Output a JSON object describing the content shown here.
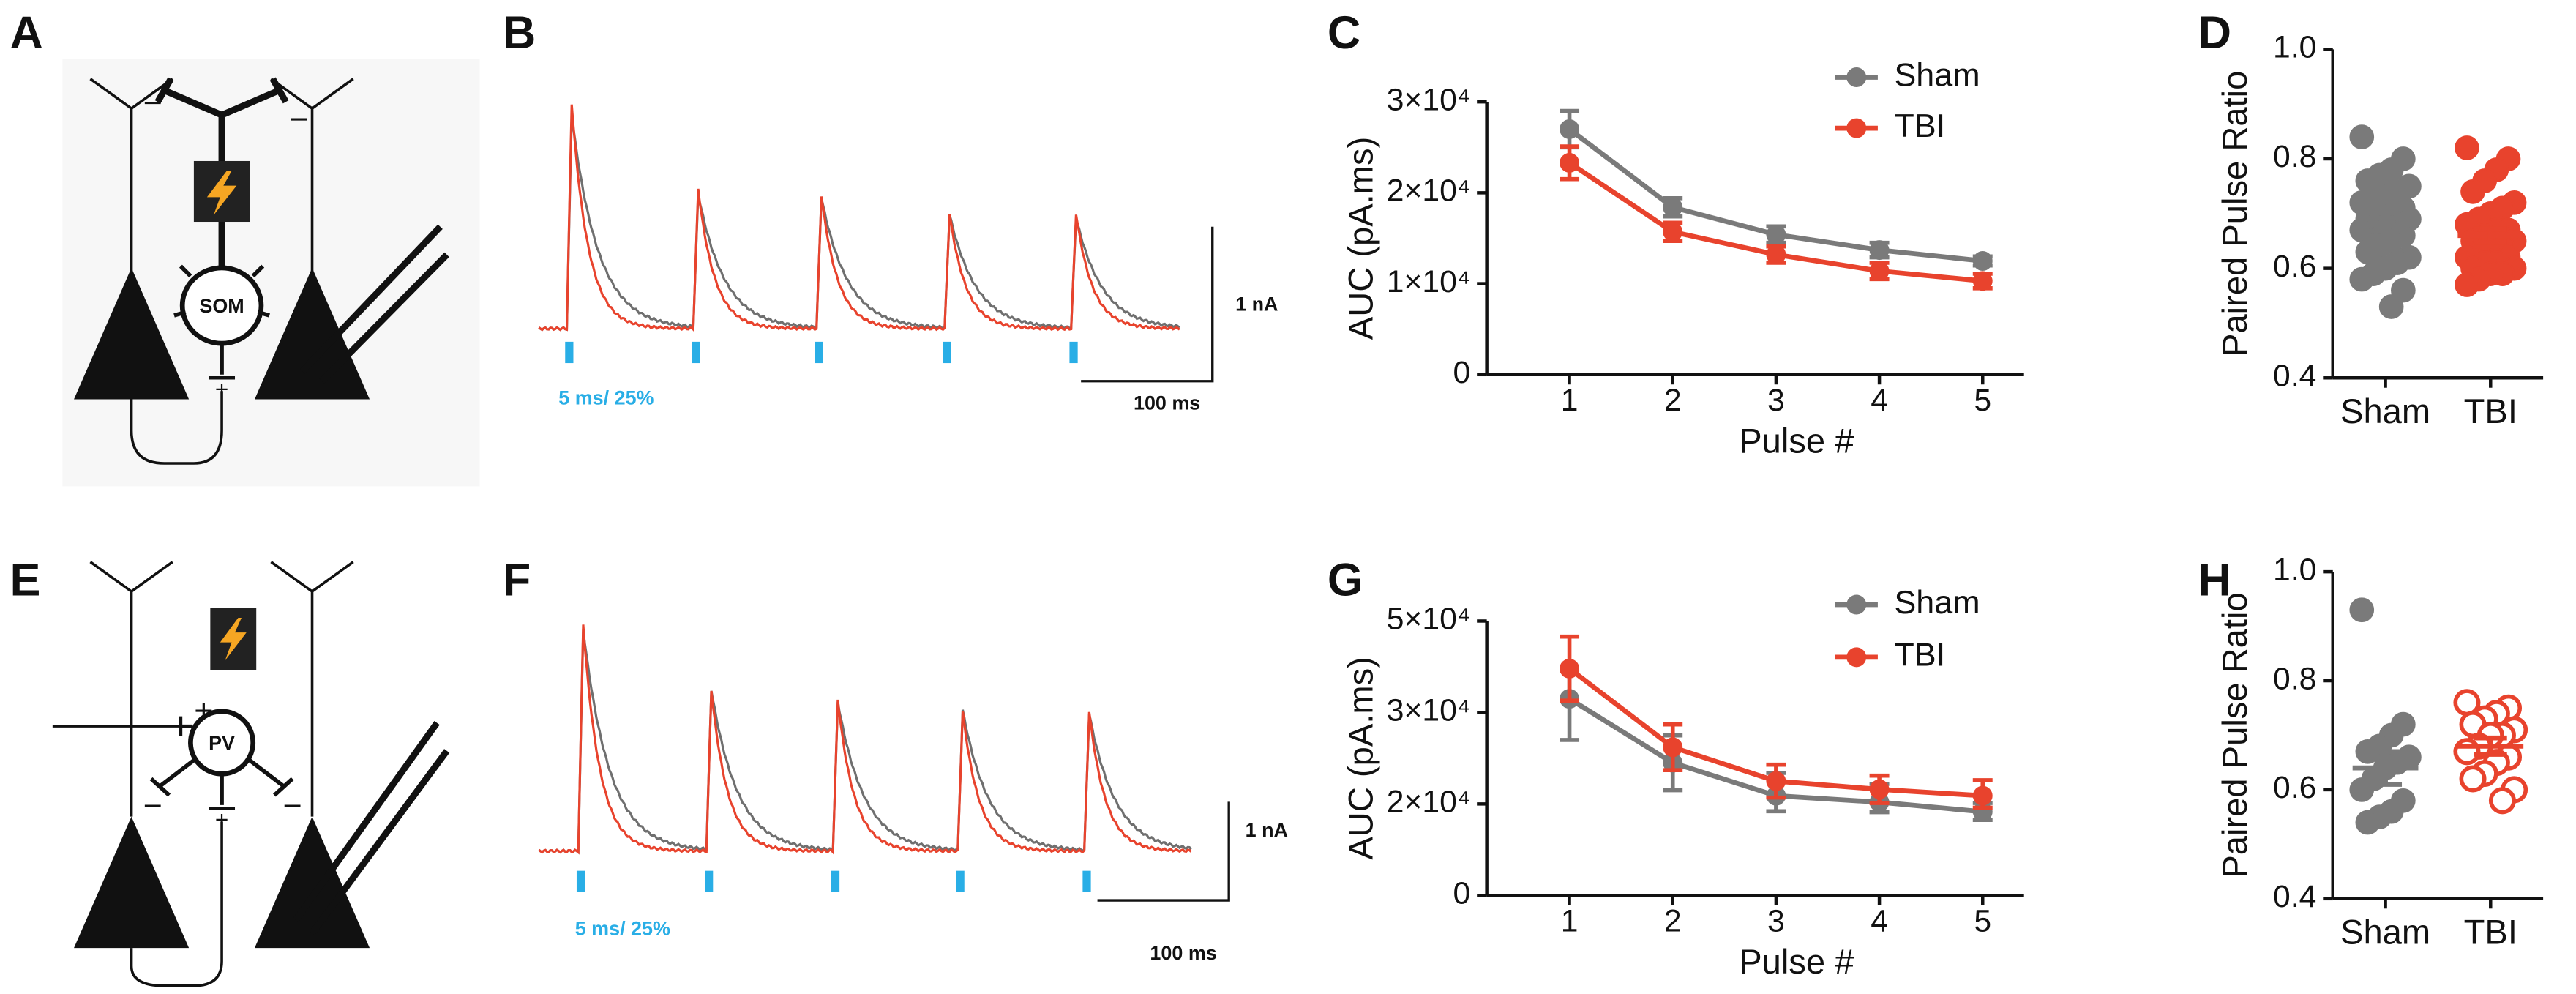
{
  "panel_labels": [
    "A",
    "B",
    "C",
    "D",
    "E",
    "F",
    "G",
    "H"
  ],
  "diagram_a": {
    "cell": "SOM",
    "signs": [
      "−",
      "−",
      "+"
    ]
  },
  "diagram_e": {
    "cell": "PV",
    "signs": [
      "+",
      "−",
      "−",
      "+"
    ]
  },
  "traces": [
    {
      "stim": "5 ms/ 25%",
      "y_scale": "1 nA",
      "x_scale": "100 ms"
    },
    {
      "stim": "5 ms/ 25%",
      "y_scale": "1 nA",
      "x_scale": "100 ms"
    }
  ],
  "chart_data": [
    {
      "type": "line",
      "x_label": "Pulse #",
      "y_label": "AUC (pA.ms)",
      "x": [
        1,
        2,
        3,
        4,
        5
      ],
      "xlim": [
        0.2,
        5.4
      ],
      "xticks": [
        1,
        2,
        3,
        4,
        5
      ],
      "ylim": [
        0,
        30000
      ],
      "yticks": [
        0,
        {
          "value": 10000,
          "label": "1×10⁴"
        },
        {
          "value": 20000,
          "label": "2×10⁴"
        },
        {
          "value": 30000,
          "label": "3×10⁴"
        }
      ],
      "legend": "upper right",
      "series": [
        {
          "name": "Sham",
          "color": "#7a7a7a",
          "values": [
            27000,
            18400,
            15400,
            13700,
            12500
          ],
          "errors": [
            2000,
            1000,
            900,
            800,
            500
          ]
        },
        {
          "name": "TBI",
          "color": "#e8432d",
          "values": [
            23300,
            15700,
            13200,
            11400,
            10300
          ],
          "errors": [
            1800,
            1000,
            900,
            900,
            800
          ]
        }
      ]
    },
    {
      "type": "strip",
      "y_label": "Paired Pulse Ratio",
      "categories": [
        "Sham",
        "TBI"
      ],
      "ylim": [
        0.4,
        1
      ],
      "yticks": [
        0.4,
        0.6,
        0.8,
        {
          "value": 1,
          "label": "1.0"
        }
      ],
      "series": [
        {
          "color": "#7a7a7a",
          "mean": 0.68,
          "sem": 0.012,
          "values": [
            0.84,
            0.8,
            0.78,
            0.77,
            0.76,
            0.75,
            0.74,
            0.73,
            0.72,
            0.72,
            0.71,
            0.7,
            0.7,
            0.69,
            0.69,
            0.68,
            0.68,
            0.67,
            0.67,
            0.66,
            0.65,
            0.64,
            0.63,
            0.62,
            0.61,
            0.6,
            0.59,
            0.58,
            0.56,
            0.53
          ]
        },
        {
          "color": "#e8432d",
          "mean": 0.66,
          "sem": 0.012,
          "values": [
            0.82,
            0.8,
            0.78,
            0.76,
            0.74,
            0.72,
            0.71,
            0.7,
            0.69,
            0.68,
            0.67,
            0.67,
            0.66,
            0.65,
            0.65,
            0.64,
            0.63,
            0.63,
            0.62,
            0.62,
            0.61,
            0.61,
            0.6,
            0.6,
            0.59,
            0.59,
            0.58,
            0.57
          ]
        }
      ]
    },
    {
      "type": "line",
      "x_label": "Pulse #",
      "y_label": "AUC (pA.ms)",
      "x": [
        1,
        2,
        3,
        4,
        5
      ],
      "xlim": [
        0.2,
        5.4
      ],
      "xticks": [
        1,
        2,
        3,
        4,
        5
      ],
      "ylim": [
        0,
        50000
      ],
      "yticks": [
        0,
        {
          "value": 20000,
          "label": "2×10⁴"
        },
        {
          "value": 30000,
          "label": "3×10⁴"
        },
        {
          "value": 50000,
          "label": "5×10⁴"
        }
      ],
      "legend": "upper right",
      "series": [
        {
          "name": "Sham",
          "color": "#7a7a7a",
          "values": [
            33000,
            24500,
            20900,
            20200,
            18300
          ],
          "errors": [
            6000,
            3000,
            2500,
            2000,
            1800
          ]
        },
        {
          "name": "TBI",
          "color": "#e8432d",
          "values": [
            39600,
            26200,
            22500,
            21600,
            20900
          ],
          "errors": [
            7000,
            2500,
            1800,
            1500,
            1700
          ]
        }
      ]
    },
    {
      "type": "strip",
      "y_label": "Paired Pulse Ratio",
      "categories": [
        "Sham",
        "TBI"
      ],
      "ylim": [
        0.4,
        1
      ],
      "yticks": [
        0.4,
        0.6,
        0.8,
        {
          "value": 1,
          "label": "1.0"
        }
      ],
      "series": [
        {
          "color": "#7a7a7a",
          "mean": 0.64,
          "sem": 0.03,
          "values": [
            0.93,
            0.72,
            0.7,
            0.68,
            0.67,
            0.66,
            0.65,
            0.64,
            0.62,
            0.6,
            0.58,
            0.56,
            0.55,
            0.54
          ]
        },
        {
          "color": "#e8432d",
          "hollow": true,
          "mean": 0.68,
          "sem": 0.015,
          "values": [
            0.76,
            0.75,
            0.74,
            0.73,
            0.72,
            0.71,
            0.7,
            0.7,
            0.68,
            0.67,
            0.66,
            0.65,
            0.63,
            0.62,
            0.6,
            0.58
          ]
        }
      ]
    }
  ]
}
